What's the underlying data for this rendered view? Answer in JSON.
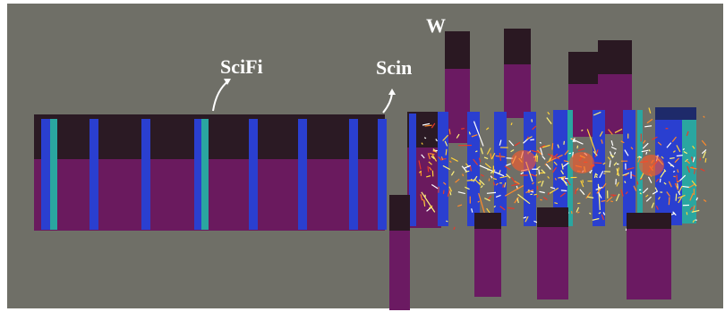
{
  "labels": {
    "scifi": "SciFi",
    "scin": "Scin",
    "w": "W"
  }
}
